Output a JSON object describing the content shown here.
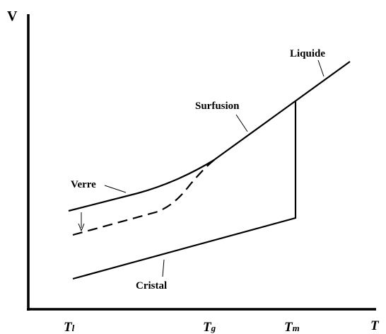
{
  "axes": {
    "x": "T",
    "y": "V"
  },
  "ticks": [
    {
      "base": "T",
      "sub": "l"
    },
    {
      "base": "T",
      "sub": "g"
    },
    {
      "base": "T",
      "sub": "m"
    }
  ],
  "labels": {
    "verre": "Verre",
    "surfusion": "Surfusion",
    "liquide": "Liquide",
    "cristal": "Cristal"
  }
}
